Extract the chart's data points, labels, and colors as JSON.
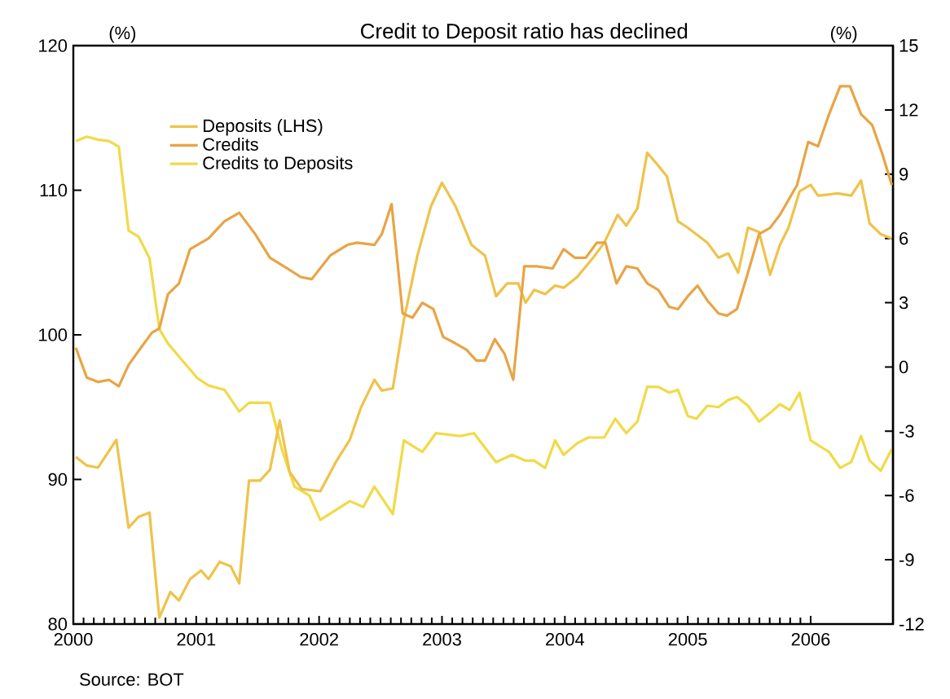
{
  "chart_data": {
    "type": "line",
    "title": "Credit to Deposit ratio has declined",
    "ylabel": "(%)",
    "y2label": "(%)",
    "annotations": [
      "Source: BOT"
    ],
    "xlim": [
      2000,
      2006.67
    ],
    "xticks": [
      2000,
      2001,
      2002,
      2003,
      2004,
      2005,
      2006
    ],
    "ylim": [
      80,
      120
    ],
    "yticks": [
      80,
      90,
      100,
      110,
      120
    ],
    "y2lim": [
      -12,
      15
    ],
    "y2ticks": [
      -12,
      -9,
      -6,
      -3,
      0,
      3,
      6,
      9,
      12,
      15
    ],
    "legend": "top left",
    "line_style": "solid",
    "series": [
      {
        "name": "Deposits (LHS)",
        "color": "#efc24a",
        "axis": "y2",
        "x": [
          2000.02,
          2000.11,
          2000.2,
          2000.35,
          2000.45,
          2000.53,
          2000.62,
          2000.7,
          2000.79,
          2000.86,
          2000.95,
          2001.04,
          2001.1,
          2001.19,
          2001.28,
          2001.35,
          2001.43,
          2001.52,
          2001.6,
          2001.68,
          2001.76,
          2001.86,
          2002.01,
          2002.14,
          2002.25,
          2002.34,
          2002.45,
          2002.51,
          2002.6,
          2002.69,
          2002.8,
          2002.91,
          2003.0,
          2003.11,
          2003.24,
          2003.35,
          2003.44,
          2003.53,
          2003.62,
          2003.68,
          2003.75,
          2003.84,
          2003.92,
          2003.99,
          2004.1,
          2004.23,
          2004.32,
          2004.43,
          2004.5,
          2004.59,
          2004.67,
          2004.76,
          2004.83,
          2004.92,
          2005.0,
          2005.16,
          2005.25,
          2005.33,
          2005.41,
          2005.49,
          2005.58,
          2005.67,
          2005.75,
          2005.82,
          2005.91,
          2006.0,
          2006.06,
          2006.22,
          2006.33,
          2006.41,
          2006.48,
          2006.57,
          2006.66
        ],
        "values": [
          -4.2,
          -4.6,
          -4.7,
          -3.4,
          -7.5,
          -7.0,
          -6.8,
          -11.7,
          -10.5,
          -10.9,
          -9.9,
          -9.5,
          -9.9,
          -9.1,
          -9.3,
          -10.1,
          -5.3,
          -5.3,
          -4.8,
          -2.5,
          -4.9,
          -5.7,
          -5.8,
          -4.4,
          -3.4,
          -1.9,
          -0.6,
          -1.1,
          -1.0,
          2.2,
          5.2,
          7.5,
          8.6,
          7.5,
          5.7,
          5.2,
          3.3,
          3.9,
          3.9,
          3.0,
          3.6,
          3.4,
          3.8,
          3.7,
          4.2,
          5.1,
          5.8,
          7.1,
          6.6,
          7.4,
          10.0,
          9.4,
          8.9,
          6.8,
          6.5,
          5.8,
          5.1,
          5.3,
          4.4,
          6.5,
          6.3,
          4.3,
          5.7,
          6.5,
          8.2,
          8.5,
          8.0,
          8.1,
          8.0,
          8.7,
          6.7,
          6.2,
          6.0
        ]
      },
      {
        "name": "Credits",
        "color": "#e9a445",
        "axis": "y2",
        "x": [
          2000.02,
          2000.11,
          2000.2,
          2000.29,
          2000.37,
          2000.45,
          2000.55,
          2000.64,
          2000.7,
          2000.77,
          2000.86,
          2000.95,
          2001.1,
          2001.23,
          2001.35,
          2001.48,
          2001.6,
          2001.74,
          2001.85,
          2001.94,
          2002.09,
          2002.23,
          2002.31,
          2002.45,
          2002.51,
          2002.59,
          2002.68,
          2002.76,
          2002.84,
          2002.93,
          2003.01,
          2003.11,
          2003.2,
          2003.28,
          2003.35,
          2003.43,
          2003.51,
          2003.58,
          2003.67,
          2003.77,
          2003.9,
          2003.99,
          2004.08,
          2004.17,
          2004.26,
          2004.33,
          2004.42,
          2004.5,
          2004.59,
          2004.67,
          2004.76,
          2004.85,
          2004.92,
          2005.0,
          2005.08,
          2005.16,
          2005.25,
          2005.32,
          2005.4,
          2005.49,
          2005.58,
          2005.67,
          2005.75,
          2005.89,
          2005.98,
          2006.06,
          2006.15,
          2006.24,
          2006.32,
          2006.41,
          2006.5,
          2006.58,
          2006.66
        ],
        "values": [
          0.9,
          -0.5,
          -0.7,
          -0.6,
          -0.9,
          0.1,
          0.9,
          1.6,
          1.8,
          3.4,
          3.9,
          5.5,
          6.0,
          6.8,
          7.2,
          6.2,
          5.1,
          4.6,
          4.2,
          4.1,
          5.2,
          5.7,
          5.8,
          5.7,
          6.2,
          7.6,
          2.5,
          2.3,
          3.0,
          2.7,
          1.4,
          1.1,
          0.8,
          0.3,
          0.3,
          1.3,
          0.6,
          -0.6,
          4.7,
          4.7,
          4.6,
          5.5,
          5.1,
          5.1,
          5.8,
          5.8,
          3.9,
          4.7,
          4.6,
          3.9,
          3.6,
          2.8,
          2.7,
          3.3,
          3.8,
          3.1,
          2.5,
          2.4,
          2.7,
          4.4,
          6.2,
          6.5,
          7.1,
          8.5,
          10.5,
          10.3,
          11.8,
          13.1,
          13.1,
          11.8,
          11.3,
          10.0,
          8.5
        ]
      },
      {
        "name": "Credits to Deposits",
        "color": "#f1da48",
        "axis": "y",
        "x": [
          2000.02,
          2000.11,
          2000.2,
          2000.29,
          2000.37,
          2000.45,
          2000.53,
          2000.62,
          2000.7,
          2000.77,
          2000.88,
          2001.01,
          2001.1,
          2001.23,
          2001.35,
          2001.43,
          2001.6,
          2001.7,
          2001.8,
          2001.92,
          2002.01,
          2002.25,
          2002.36,
          2002.45,
          2002.6,
          2002.69,
          2002.84,
          2002.95,
          2003.15,
          2003.26,
          2003.44,
          2003.57,
          2003.68,
          2003.75,
          2003.84,
          2003.92,
          2003.99,
          2004.1,
          2004.19,
          2004.32,
          2004.41,
          2004.5,
          2004.59,
          2004.67,
          2004.76,
          2004.85,
          2004.92,
          2005.0,
          2005.07,
          2005.16,
          2005.25,
          2005.33,
          2005.4,
          2005.49,
          2005.58,
          2005.67,
          2005.75,
          2005.83,
          2005.91,
          2006.0,
          2006.15,
          2006.24,
          2006.33,
          2006.41,
          2006.48,
          2006.57,
          2006.66
        ],
        "values": [
          113.4,
          113.7,
          113.5,
          113.4,
          113.0,
          107.2,
          106.8,
          105.3,
          100.4,
          99.4,
          98.3,
          97.0,
          96.5,
          96.2,
          94.7,
          95.3,
          95.3,
          92.0,
          89.5,
          88.9,
          87.2,
          88.5,
          88.1,
          89.5,
          87.6,
          92.7,
          91.9,
          93.2,
          93.0,
          93.2,
          91.2,
          91.7,
          91.3,
          91.3,
          90.8,
          92.7,
          91.7,
          92.5,
          92.9,
          92.9,
          94.2,
          93.2,
          94.0,
          96.4,
          96.4,
          96.0,
          96.2,
          94.4,
          94.2,
          95.1,
          95.0,
          95.5,
          95.7,
          95.1,
          94.0,
          94.6,
          95.2,
          94.8,
          96.0,
          92.7,
          91.9,
          90.8,
          91.2,
          93.0,
          91.3,
          90.6,
          92.1
        ]
      }
    ]
  }
}
